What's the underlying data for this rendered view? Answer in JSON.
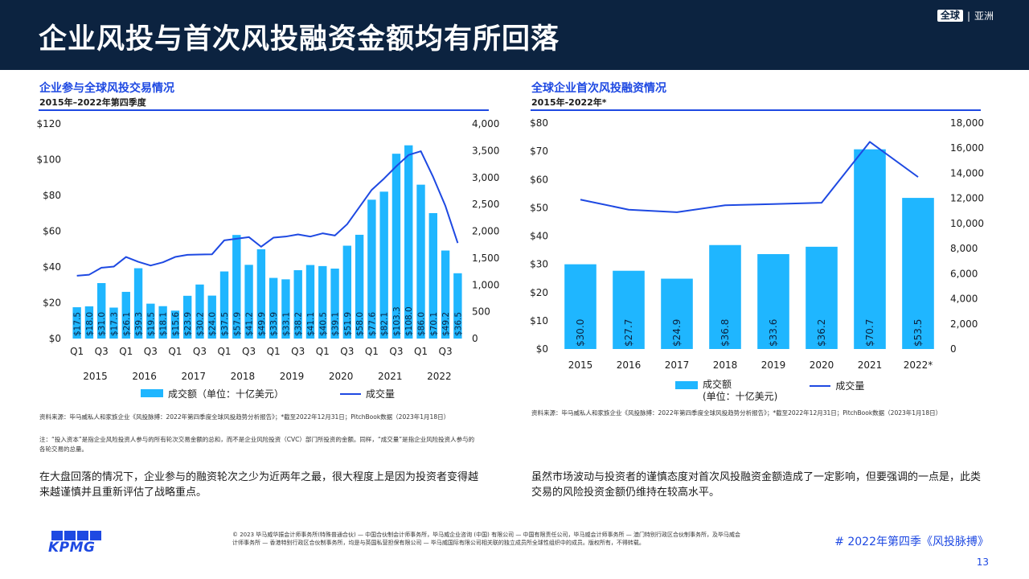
{
  "header": {
    "title": "企业风投与首次风投融资金额均有所回落",
    "badge_box": "全球",
    "badge_sep": "|",
    "badge_region": "亚洲"
  },
  "left": {
    "title": "企业参与全球风投交易情况",
    "subtitle": "2015年–2022年第四季度",
    "legend_bar": "成交额（单位：十亿美元）",
    "legend_line": "成交量",
    "source": "资料来源：毕马威私人和家族企业《风投脉搏：2022年第四季度全球风投趋势分析报告》；*截至2022年12月31日；PitchBook数据（2023年1月18日）",
    "note": "注：“投入资本”是指企业风险投资人参与的所有轮次交易金额的总和，而不是企业风险投资（CVC）部门所投资的金额。同样，“成交量”是指企业风险投资人参与的各轮交易的总量。",
    "paragraph": "在大盘回落的情况下，企业参与的融资轮次之少为近两年之最，很大程度上是因为投资者变得越来越谨慎并且重新评估了战略重点。"
  },
  "right": {
    "title": "全球企业首次风投融资情况",
    "subtitle": "2015年-2022年*",
    "legend_bar_line1": "成交额",
    "legend_bar_line2": "(单位：十亿美元)",
    "legend_line": "成交量",
    "source": "资料来源：毕马威私人和家族企业《风投脉搏：2022年第四季度全球风投趋势分析报告》；*截至2022年12月31日；PitchBook数据（2023年1月18日）",
    "paragraph": "虽然市场波动与投资者的谨慎态度对首次风投融资金额造成了一定影响，但要强调的一点是，此类交易的风险投资金额仍维持在较高水平。"
  },
  "footer": {
    "logo": "KPMG",
    "copyright": "© 2023 毕马威华振会计师事务所(特殊普通合伙) — 中国合伙制会计师事务所，毕马威企业咨询 (中国) 有限公司 — 中国有限责任公司，毕马威会计师事务所 — 澳门特别行政区合伙制事务所，及毕马威会计师事务所 — 香港特别行政区合伙制事务所，均是与英国私营担保有限公司 — 毕马威国际有限公司相关联的独立成员所全球性组织中的成员。版权所有，不得转载。",
    "tag": "# 2022年第四季《风投脉搏》",
    "page": "13"
  },
  "colors": {
    "header_bg": "#0c2340",
    "accent_blue": "#1e49e2",
    "bar_cyan": "#1fb6ff"
  },
  "chart_data": [
    {
      "type": "bar",
      "title": "企业参与全球风投交易情况",
      "subtitle": "2015年–2022年第四季度",
      "categories": [
        "Q1",
        "Q2",
        "Q3",
        "Q4",
        "Q1",
        "Q2",
        "Q3",
        "Q4",
        "Q1",
        "Q2",
        "Q3",
        "Q4",
        "Q1",
        "Q2",
        "Q3",
        "Q4",
        "Q1",
        "Q2",
        "Q3",
        "Q4",
        "Q1",
        "Q2",
        "Q3",
        "Q4",
        "Q1",
        "Q2",
        "Q3",
        "Q4",
        "Q1",
        "Q2",
        "Q3",
        "Q4"
      ],
      "x_tick_labels": [
        "Q1",
        "Q3",
        "Q1",
        "Q3",
        "Q1",
        "Q3",
        "Q1",
        "Q3",
        "Q1",
        "Q3",
        "Q1",
        "Q3",
        "Q1",
        "Q3",
        "Q1",
        "Q3"
      ],
      "years": [
        "2015",
        "2016",
        "2017",
        "2018",
        "2019",
        "2020",
        "2021",
        "2022"
      ],
      "series": [
        {
          "name": "成交额（单位：十亿美元）",
          "axis": "left",
          "values": [
            17.5,
            18.0,
            31.0,
            17.3,
            26.1,
            39.3,
            19.5,
            18.1,
            15.6,
            23.9,
            30.2,
            24.0,
            37.5,
            57.9,
            41.2,
            49.9,
            33.9,
            33.1,
            38.2,
            41.1,
            40.5,
            39.1,
            51.9,
            58.0,
            77.6,
            82.1,
            103.3,
            108.0,
            86.0,
            70.1,
            49.2,
            36.5
          ],
          "labels": [
            "$17.5",
            "$18.0",
            "$31.0",
            "$17.3",
            "$26.1",
            "$39.3",
            "$19.5",
            "$18.1",
            "$15.6",
            "$23.9",
            "$30.2",
            "$24.0",
            "$37.5",
            "$57.9",
            "$41.2",
            "$49.9",
            "$33.9",
            "$33.1",
            "$38.2",
            "$41.1",
            "$40.5",
            "$39.1",
            "$51.9",
            "$58.0",
            "$77.6",
            "$82.1",
            "$103.3",
            "$108.0",
            "$86.0",
            "$70.1",
            "$49.2",
            "$36.5"
          ]
        },
        {
          "name": "成交量",
          "axis": "right",
          "values": [
            1170,
            1190,
            1320,
            1340,
            1520,
            1430,
            1360,
            1420,
            1520,
            1560,
            1565,
            1570,
            1830,
            1860,
            1890,
            1710,
            1880,
            1900,
            1940,
            1900,
            1960,
            1920,
            2130,
            2450,
            2770,
            2980,
            3210,
            3420,
            3490,
            3010,
            2470,
            1780
          ]
        }
      ],
      "y_left": {
        "ylim": [
          0,
          120
        ],
        "ticks": [
          "$0",
          "$20",
          "$40",
          "$60",
          "$80",
          "$100",
          "$120"
        ]
      },
      "y_right": {
        "ylim": [
          0,
          4000
        ],
        "ticks": [
          "0",
          "500",
          "1,000",
          "1,500",
          "2,000",
          "2,500",
          "3,000",
          "3,500",
          "4,000"
        ]
      },
      "grid": false,
      "legend": "bottom"
    },
    {
      "type": "bar",
      "title": "全球企业首次风投融资情况",
      "subtitle": "2015年-2022年*",
      "categories": [
        "2015",
        "2016",
        "2017",
        "2018",
        "2019",
        "2020",
        "2021",
        "2022*"
      ],
      "series": [
        {
          "name": "成交额 (单位：十亿美元)",
          "axis": "left",
          "values": [
            30.0,
            27.7,
            24.9,
            36.8,
            33.6,
            36.2,
            70.7,
            53.5
          ],
          "labels": [
            "$30.0",
            "$27.7",
            "$24.9",
            "$36.8",
            "$33.6",
            "$36.2",
            "$70.7",
            "$53.5"
          ]
        },
        {
          "name": "成交量",
          "axis": "right",
          "values": [
            11900,
            11100,
            10900,
            11450,
            11550,
            11650,
            16500,
            13700
          ]
        }
      ],
      "y_left": {
        "ylim": [
          0,
          80
        ],
        "ticks": [
          "$0",
          "$10",
          "$20",
          "$30",
          "$40",
          "$50",
          "$60",
          "$70",
          "$80"
        ]
      },
      "y_right": {
        "ylim": [
          0,
          18000
        ],
        "ticks": [
          "0",
          "2,000",
          "4,000",
          "6,000",
          "8,000",
          "10,000",
          "12,000",
          "14,000",
          "16,000",
          "18,000"
        ]
      },
      "grid": false,
      "legend": "bottom"
    }
  ]
}
